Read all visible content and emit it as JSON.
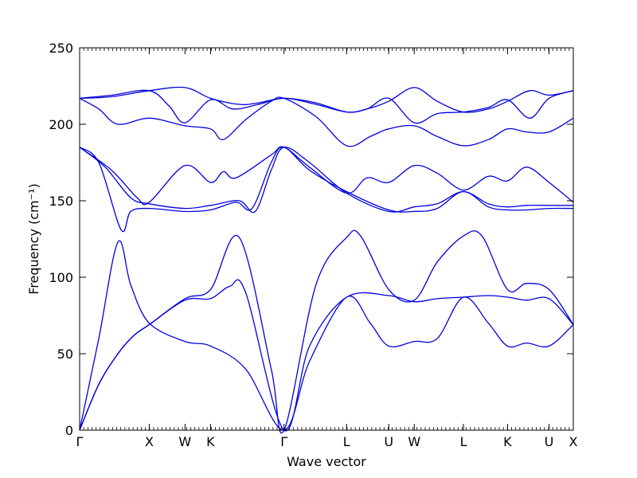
{
  "chart_data": {
    "type": "line",
    "xlabel": "Wave vector",
    "ylabel": "Frequency (cm⁻¹)",
    "ylim": [
      0,
      250
    ],
    "yticks": [
      0,
      50,
      100,
      150,
      200,
      250
    ],
    "xlim": [
      0,
      7.73
    ],
    "high_symmetry_points": [
      {
        "label": "Γ",
        "x": 0.0
      },
      {
        "label": "X",
        "x": 1.09
      },
      {
        "label": "W",
        "x": 1.65
      },
      {
        "label": "K",
        "x": 2.05
      },
      {
        "label": "Γ",
        "x": 3.2
      },
      {
        "label": "L",
        "x": 4.18
      },
      {
        "label": "U",
        "x": 4.84
      },
      {
        "label": "W",
        "x": 5.24
      },
      {
        "label": "L",
        "x": 6.01
      },
      {
        "label": "K",
        "x": 6.7
      },
      {
        "label": "U",
        "x": 7.35
      },
      {
        "label": "X",
        "x": 7.73
      }
    ],
    "grid": false,
    "legend": "none",
    "line_color": "#0000dd",
    "series": [
      {
        "values": [
          [
            0,
            0
          ],
          [
            0.3,
            60
          ],
          [
            0.6,
            123
          ],
          [
            0.8,
            95
          ],
          [
            1.09,
            70
          ],
          [
            1.65,
            58
          ],
          [
            2.05,
            55
          ],
          [
            2.6,
            40
          ],
          [
            3.2,
            0
          ],
          [
            3.6,
            45
          ],
          [
            4.18,
            87
          ],
          [
            4.55,
            70
          ],
          [
            4.84,
            55
          ],
          [
            5.24,
            58
          ],
          [
            5.6,
            60
          ],
          [
            6.01,
            87
          ],
          [
            6.4,
            70
          ],
          [
            6.7,
            55
          ],
          [
            7.0,
            57
          ],
          [
            7.35,
            55
          ],
          [
            7.73,
            69
          ]
        ]
      },
      {
        "values": [
          [
            0,
            0
          ],
          [
            0.3,
            30
          ],
          [
            0.6,
            50
          ],
          [
            0.85,
            62
          ],
          [
            1.09,
            69
          ],
          [
            1.65,
            85
          ],
          [
            2.05,
            86
          ],
          [
            2.35,
            94
          ],
          [
            2.6,
            90
          ],
          [
            3.2,
            0
          ],
          [
            3.6,
            55
          ],
          [
            4.18,
            87
          ],
          [
            4.84,
            88
          ],
          [
            5.24,
            84
          ],
          [
            5.6,
            86
          ],
          [
            6.01,
            87
          ],
          [
            6.4,
            88
          ],
          [
            6.7,
            87
          ],
          [
            7.0,
            85
          ],
          [
            7.35,
            86
          ],
          [
            7.73,
            69
          ]
        ]
      },
      {
        "values": [
          [
            0,
            0
          ],
          [
            0.3,
            30
          ],
          [
            0.6,
            50
          ],
          [
            0.85,
            62
          ],
          [
            1.09,
            69
          ],
          [
            1.65,
            86
          ],
          [
            2.05,
            92
          ],
          [
            2.5,
            126
          ],
          [
            3.0,
            40
          ],
          [
            3.2,
            0
          ],
          [
            3.7,
            95
          ],
          [
            4.18,
            126
          ],
          [
            4.4,
            127
          ],
          [
            4.84,
            92
          ],
          [
            5.24,
            85
          ],
          [
            5.6,
            110
          ],
          [
            6.01,
            127
          ],
          [
            6.3,
            127
          ],
          [
            6.7,
            92
          ],
          [
            7.0,
            96
          ],
          [
            7.35,
            92
          ],
          [
            7.73,
            69
          ]
        ]
      },
      {
        "values": [
          [
            0,
            185
          ],
          [
            0.3,
            175
          ],
          [
            0.65,
            131
          ],
          [
            0.8,
            143
          ],
          [
            1.09,
            145
          ],
          [
            1.65,
            143
          ],
          [
            2.05,
            144
          ],
          [
            2.45,
            149
          ],
          [
            2.7,
            145
          ],
          [
            3.0,
            175
          ],
          [
            3.2,
            185
          ],
          [
            3.6,
            170
          ],
          [
            4.18,
            156
          ],
          [
            4.84,
            144
          ],
          [
            5.24,
            143
          ],
          [
            5.6,
            145
          ],
          [
            6.01,
            156
          ],
          [
            6.4,
            146
          ],
          [
            6.7,
            144
          ],
          [
            7.0,
            144
          ],
          [
            7.35,
            145
          ],
          [
            7.73,
            145
          ]
        ]
      },
      {
        "values": [
          [
            0,
            185
          ],
          [
            0.4,
            172
          ],
          [
            0.8,
            152
          ],
          [
            1.09,
            148
          ],
          [
            1.65,
            145
          ],
          [
            2.05,
            147
          ],
          [
            2.5,
            150
          ],
          [
            2.75,
            143
          ],
          [
            3.0,
            170
          ],
          [
            3.2,
            185
          ],
          [
            3.6,
            175
          ],
          [
            4.18,
            155
          ],
          [
            4.84,
            143
          ],
          [
            5.24,
            146
          ],
          [
            5.6,
            148
          ],
          [
            6.01,
            156
          ],
          [
            6.4,
            148
          ],
          [
            6.7,
            146
          ],
          [
            7.0,
            147
          ],
          [
            7.35,
            147
          ],
          [
            7.73,
            147
          ]
        ]
      },
      {
        "values": [
          [
            0,
            185
          ],
          [
            0.5,
            170
          ],
          [
            0.9,
            152
          ],
          [
            1.09,
            149
          ],
          [
            1.65,
            173
          ],
          [
            2.05,
            162
          ],
          [
            2.25,
            169
          ],
          [
            2.45,
            165
          ],
          [
            3.0,
            180
          ],
          [
            3.2,
            185
          ],
          [
            3.6,
            172
          ],
          [
            4.18,
            155
          ],
          [
            4.5,
            165
          ],
          [
            4.84,
            162
          ],
          [
            5.24,
            173
          ],
          [
            5.6,
            168
          ],
          [
            6.01,
            157
          ],
          [
            6.4,
            166
          ],
          [
            6.7,
            163
          ],
          [
            7.0,
            172
          ],
          [
            7.35,
            162
          ],
          [
            7.73,
            149
          ]
        ]
      },
      {
        "values": [
          [
            0,
            217
          ],
          [
            0.3,
            210
          ],
          [
            0.6,
            200
          ],
          [
            1.09,
            204
          ],
          [
            1.65,
            199
          ],
          [
            2.05,
            197
          ],
          [
            2.25,
            190
          ],
          [
            2.6,
            203
          ],
          [
            3.0,
            215
          ],
          [
            3.2,
            217
          ],
          [
            3.7,
            205
          ],
          [
            4.18,
            186
          ],
          [
            4.55,
            192
          ],
          [
            4.84,
            197
          ],
          [
            5.24,
            199
          ],
          [
            5.6,
            192
          ],
          [
            6.01,
            186
          ],
          [
            6.4,
            190
          ],
          [
            6.7,
            197
          ],
          [
            7.0,
            195
          ],
          [
            7.35,
            195
          ],
          [
            7.73,
            204
          ]
        ]
      },
      {
        "values": [
          [
            0,
            217
          ],
          [
            0.5,
            219
          ],
          [
            1.09,
            222
          ],
          [
            1.4,
            212
          ],
          [
            1.65,
            201
          ],
          [
            2.05,
            216
          ],
          [
            2.4,
            210
          ],
          [
            2.8,
            213
          ],
          [
            3.2,
            217
          ],
          [
            3.7,
            213
          ],
          [
            4.18,
            208
          ],
          [
            4.5,
            210
          ],
          [
            4.84,
            217
          ],
          [
            5.24,
            201
          ],
          [
            5.6,
            207
          ],
          [
            6.01,
            208
          ],
          [
            6.4,
            211
          ],
          [
            6.7,
            216
          ],
          [
            7.05,
            204
          ],
          [
            7.35,
            217
          ],
          [
            7.73,
            222
          ]
        ]
      },
      {
        "values": [
          [
            0,
            217
          ],
          [
            0.5,
            218
          ],
          [
            1.09,
            222
          ],
          [
            1.65,
            224
          ],
          [
            2.05,
            217
          ],
          [
            2.5,
            213
          ],
          [
            2.8,
            214
          ],
          [
            3.2,
            217
          ],
          [
            3.7,
            214
          ],
          [
            4.18,
            208
          ],
          [
            4.5,
            210
          ],
          [
            4.84,
            215
          ],
          [
            5.24,
            224
          ],
          [
            5.6,
            215
          ],
          [
            6.01,
            208
          ],
          [
            6.4,
            210
          ],
          [
            6.7,
            215
          ],
          [
            7.05,
            222
          ],
          [
            7.35,
            219
          ],
          [
            7.73,
            222
          ]
        ]
      }
    ]
  }
}
